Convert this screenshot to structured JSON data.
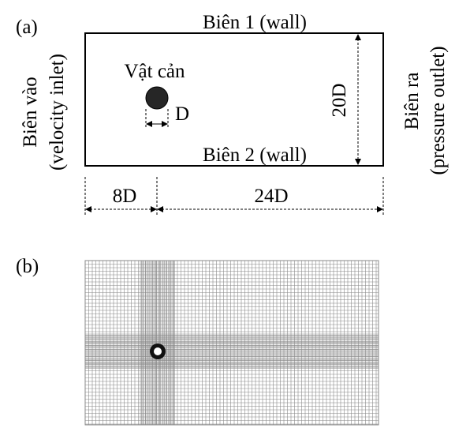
{
  "panel_a": {
    "label": "(a)",
    "top_boundary": "Biên 1 (wall)",
    "bottom_boundary": "Biên 2 (wall)",
    "inlet_line1": "Biên vào",
    "inlet_line2": "(velocity inlet)",
    "outlet_line1": "Biên ra",
    "outlet_line2": "(pressure outlet)",
    "obstacle_label": "Vật cản",
    "diameter_label": "D",
    "height_label": "20D",
    "upstream_label": "8D",
    "downstream_label": "24D"
  },
  "panel_b": {
    "label": "(b)"
  },
  "colors": {
    "line": "#000000",
    "obstacle_fill": "#262626",
    "mesh": "#8a8a8a"
  }
}
